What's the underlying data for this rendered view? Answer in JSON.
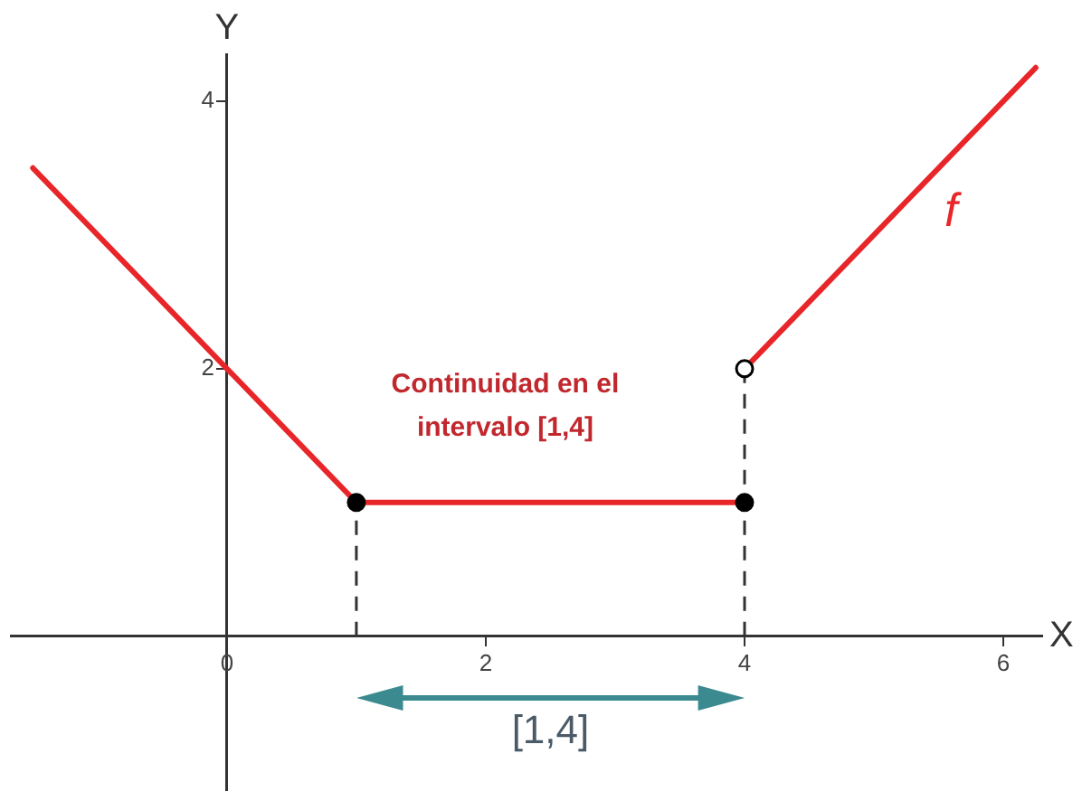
{
  "chart_data": {
    "type": "line",
    "xlabel": "X",
    "ylabel": "Y",
    "xlim": [
      -1.67,
      6.3
    ],
    "ylim": [
      -1.15,
      4.35
    ],
    "xticks": [
      0,
      2,
      4,
      6
    ],
    "yticks": [
      2,
      4
    ],
    "grid": false,
    "legend": false,
    "marker": "none",
    "line_style": "solid",
    "series": [
      {
        "color": "#e8262a",
        "x": [
          -1.5,
          0,
          1,
          4
        ],
        "values": [
          3.5,
          2,
          1,
          1
        ]
      },
      {
        "name": "f",
        "color": "#e8262a",
        "x": [
          4,
          6.25
        ],
        "values": [
          2,
          4.25
        ]
      },
      {
        "type": "scatter",
        "marker": "circle",
        "color": "#000000",
        "colors": [
          "#000000",
          "#000000",
          "#ffffff"
        ],
        "x": [
          1,
          4,
          4
        ],
        "values": [
          1,
          1,
          2
        ]
      }
    ],
    "ref_lines": [
      {
        "axis": "x",
        "value": 1,
        "line_style": "dashed",
        "color": "#333333"
      },
      {
        "axis": "x",
        "value": 4,
        "line_style": "dashed",
        "color": "#333333"
      }
    ],
    "annotations": [
      "Continuidad en el intervalo [1,4]",
      "[1,4]"
    ]
  }
}
